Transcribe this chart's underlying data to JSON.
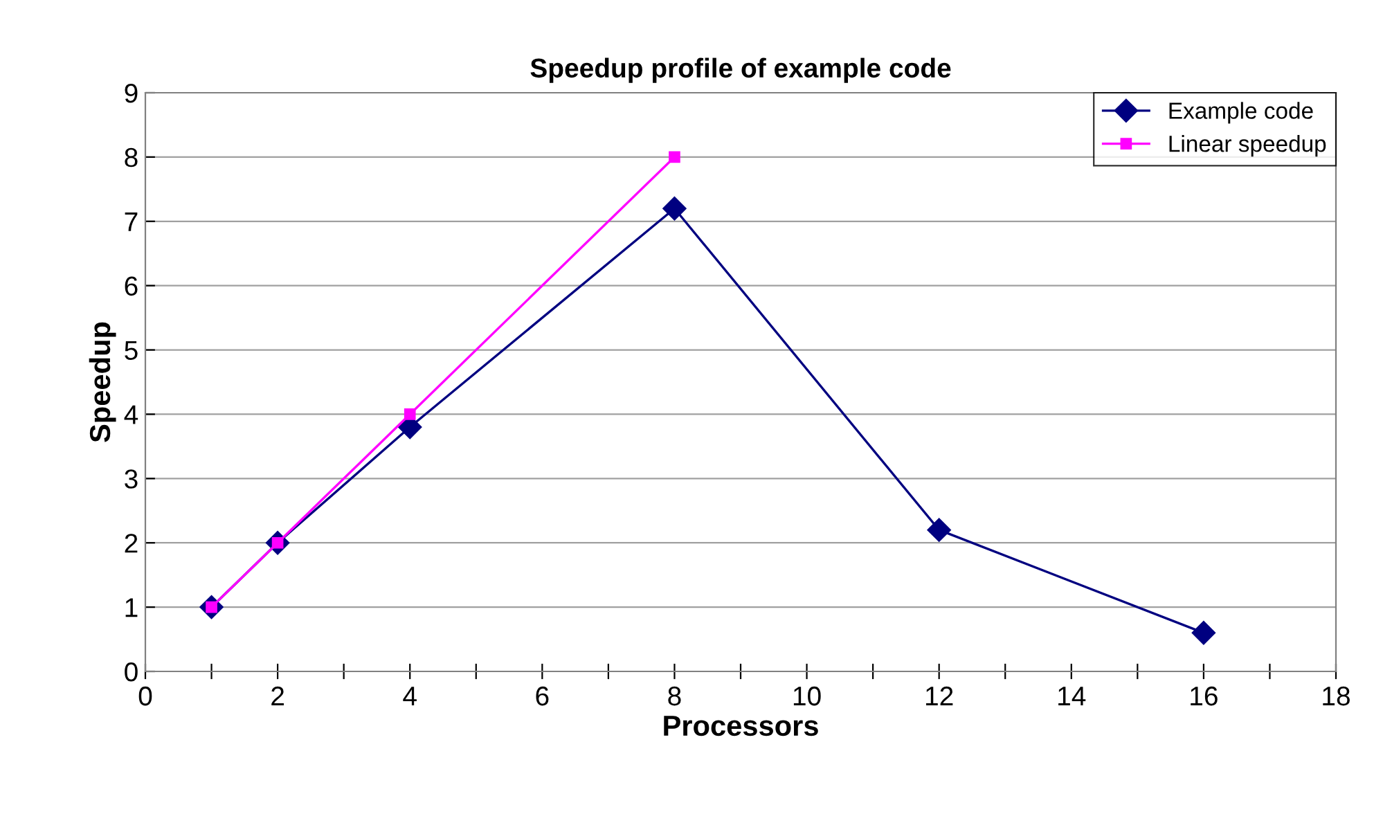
{
  "chart_data": {
    "type": "line",
    "title": "Speedup profile of example code",
    "xlabel": "Processors",
    "ylabel": "Speedup",
    "series": [
      {
        "name": "Example code",
        "color": "#000080",
        "marker": "diamond",
        "x": [
          1,
          2,
          4,
          8,
          12,
          16
        ],
        "values": [
          1,
          2,
          3.8,
          7.2,
          2.2,
          0.6
        ]
      },
      {
        "name": "Linear speedup",
        "color": "#ff00ff",
        "marker": "square",
        "x": [
          1,
          2,
          4,
          8
        ],
        "values": [
          1,
          2,
          4,
          8
        ]
      }
    ],
    "xlim": [
      0,
      18
    ],
    "ylim": [
      0,
      9
    ],
    "xticks": [
      0,
      {
        "value": 1,
        "label": null
      },
      2,
      {
        "value": 3,
        "label": null
      },
      4,
      {
        "value": 5,
        "label": null
      },
      6,
      {
        "value": 7,
        "label": null
      },
      8,
      {
        "value": 9,
        "label": null
      },
      10,
      {
        "value": 11,
        "label": null
      },
      12,
      {
        "value": 13,
        "label": null
      },
      14,
      {
        "value": 15,
        "label": null
      },
      16,
      {
        "value": 17,
        "label": null
      },
      18
    ],
    "yticks": [
      0,
      1,
      2,
      3,
      4,
      5,
      6,
      7,
      8,
      9
    ],
    "grid": "y",
    "legend": "top right",
    "line_style": "solid"
  }
}
